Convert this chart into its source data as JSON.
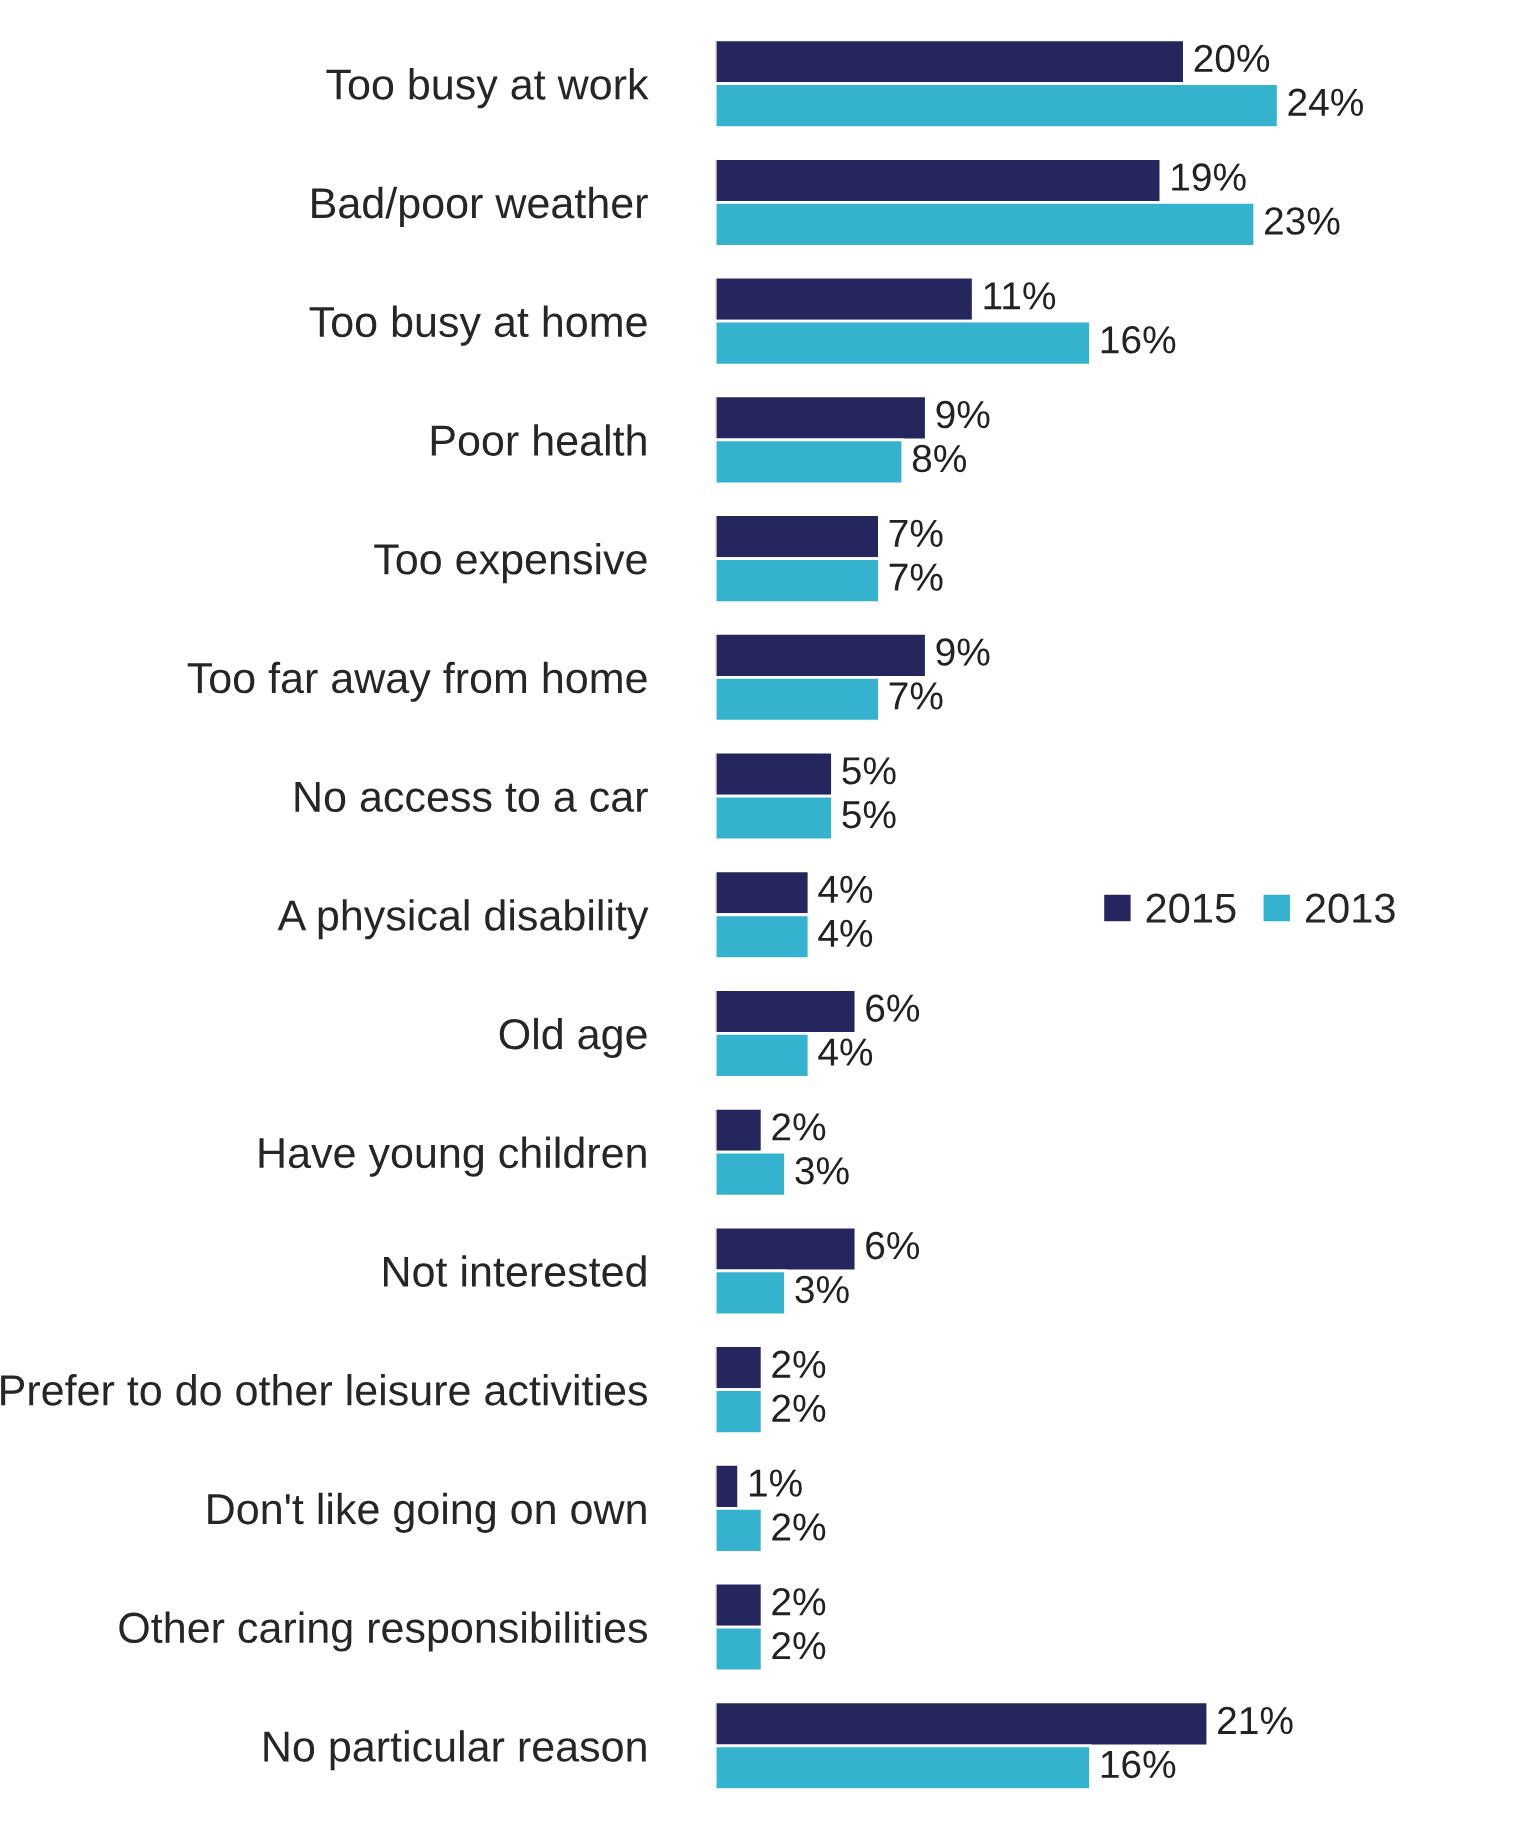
{
  "chart_data": {
    "type": "bar",
    "orientation": "horizontal",
    "categories": [
      "Too busy at work",
      "Bad/poor weather",
      "Too busy at home",
      "Poor health",
      "Too expensive",
      "Too far away from home",
      "No access to a car",
      "A physical disability",
      "Old age",
      "Have young children",
      "Not interested",
      "Prefer to do other leisure activities",
      "Don't like going on own",
      "Other caring responsibilities",
      "No particular reason"
    ],
    "series": [
      {
        "name": "2015",
        "color": "#25265e",
        "values": [
          20,
          19,
          11,
          9,
          7,
          9,
          5,
          4,
          6,
          2,
          6,
          2,
          1,
          2,
          21
        ],
        "value_labels": [
          "20%",
          "19%",
          "11%",
          "9%",
          "7%",
          "9%",
          "5%",
          "4%",
          "6%",
          "2%",
          "6%",
          "2%",
          "1%",
          "2%",
          "21%"
        ]
      },
      {
        "name": "2013",
        "color": "#35b3ce",
        "values": [
          24,
          23,
          16,
          8,
          7,
          7,
          5,
          4,
          4,
          3,
          3,
          2,
          2,
          2,
          16
        ],
        "value_labels": [
          "24%",
          "23%",
          "16%",
          "8%",
          "7%",
          "7%",
          "5%",
          "4%",
          "4%",
          "3%",
          "3%",
          "2%",
          "2%",
          "2%",
          "16%"
        ]
      }
    ],
    "legend": "right",
    "grid": false
  }
}
